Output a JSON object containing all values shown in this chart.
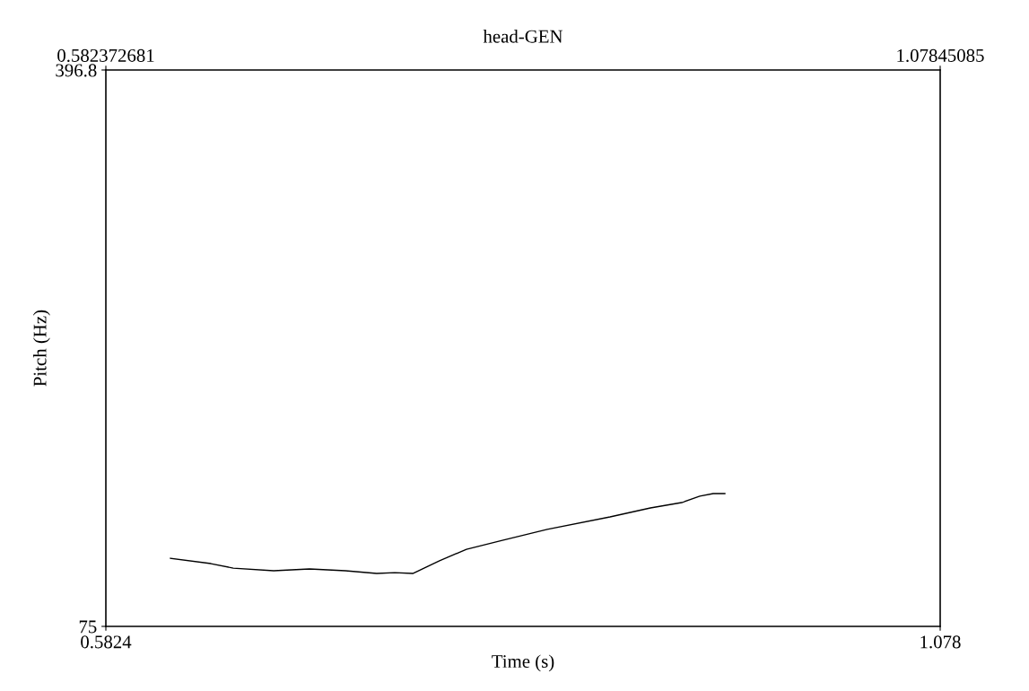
{
  "chart_data": {
    "type": "line",
    "title": "head-GEN",
    "xlabel": "Time (s)",
    "ylabel": "Pitch (Hz)",
    "x": [
      0.6208,
      0.6448,
      0.6581,
      0.6821,
      0.7034,
      0.7247,
      0.7433,
      0.754,
      0.7647,
      0.7806,
      0.7966,
      0.8179,
      0.8446,
      0.8819,
      0.9059,
      0.9245,
      0.9352,
      0.9432,
      0.9501
    ],
    "series": [
      {
        "color": "#000000",
        "values": [
          114.4,
          111.3,
          108.7,
          107.2,
          108.2,
          107.2,
          105.6,
          106.1,
          105.6,
          112.9,
          119.6,
          124.8,
          131.1,
          138.3,
          143.5,
          146.6,
          150.3,
          151.8,
          151.8
        ]
      }
    ],
    "xlim": [
      0.5824,
      1.078
    ],
    "xticks": [
      0.5824,
      1.078
    ],
    "x2lim": [
      0.582372681,
      1.07845085
    ],
    "x2ticks": [
      0.582372681,
      1.07845085
    ],
    "ylim": [
      75,
      396.8
    ],
    "yticks": [
      75,
      396.8
    ],
    "grid": false,
    "marker": "none",
    "line_style": "solid"
  }
}
